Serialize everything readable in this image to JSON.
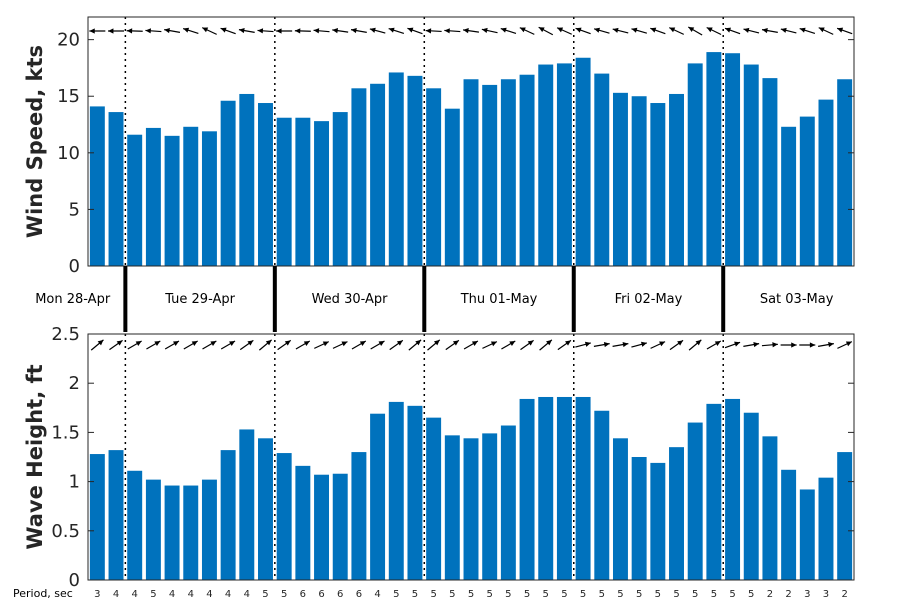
{
  "chart_data": [
    {
      "type": "bar",
      "ylabel": "Wind Speed, kts",
      "ylim": [
        0,
        22
      ],
      "yticks": [
        "0",
        "5",
        "10",
        "15",
        "20"
      ],
      "bar_color": "#0072BD",
      "arrow_style": "pointing toward wind direction (mostly from the east)",
      "values": [
        14.1,
        13.6,
        11.6,
        12.2,
        11.5,
        12.3,
        11.9,
        14.6,
        15.2,
        14.4,
        13.1,
        13.1,
        12.8,
        13.6,
        15.7,
        16.1,
        17.1,
        16.8,
        15.7,
        13.9,
        16.5,
        16.0,
        16.5,
        16.9,
        17.8,
        17.9,
        18.4,
        17.0,
        15.3,
        15.0,
        14.4,
        15.2,
        17.9,
        18.9,
        18.8,
        17.8,
        16.6,
        12.3,
        13.2,
        14.7,
        16.5
      ],
      "arrow_angles_deg": [
        180,
        180,
        182,
        184,
        190,
        198,
        205,
        200,
        190,
        184,
        180,
        182,
        185,
        188,
        190,
        195,
        198,
        200,
        183,
        184,
        188,
        192,
        198,
        205,
        208,
        204,
        200,
        196,
        194,
        196,
        200,
        205,
        210,
        206,
        200,
        194,
        190,
        194,
        198,
        205,
        200
      ]
    },
    {
      "type": "bar",
      "ylabel": "Wave Height, ft",
      "ylim": [
        0,
        2.5
      ],
      "yticks": [
        "0",
        "0.5",
        "1",
        "1.5",
        "2",
        "2.5"
      ],
      "bar_color": "#0072BD",
      "values": [
        1.28,
        1.32,
        1.11,
        1.02,
        0.96,
        0.96,
        1.02,
        1.32,
        1.53,
        1.44,
        1.29,
        1.16,
        1.07,
        1.08,
        1.3,
        1.69,
        1.81,
        1.77,
        1.65,
        1.47,
        1.44,
        1.49,
        1.57,
        1.84,
        1.86,
        1.86,
        1.86,
        1.72,
        1.44,
        1.25,
        1.19,
        1.35,
        1.6,
        1.79,
        1.84,
        1.7,
        1.46,
        1.12,
        0.92,
        1.04,
        1.3
      ],
      "arrow_angles_deg": [
        -40,
        -35,
        -30,
        -30,
        -30,
        -30,
        -30,
        -30,
        -35,
        -40,
        -35,
        -30,
        -25,
        -25,
        -30,
        -30,
        -35,
        -40,
        -40,
        -35,
        -30,
        -25,
        -30,
        -35,
        -40,
        -35,
        -15,
        -10,
        -10,
        -15,
        -25,
        -35,
        -40,
        -30,
        -20,
        -10,
        -5,
        0,
        0,
        -10,
        -25
      ]
    }
  ],
  "days": [
    "Mon 28-Apr",
    "Tue 29-Apr",
    "Wed 30-Apr",
    "Thu 01-May",
    "Fri 02-May",
    "Sat 03-May"
  ],
  "period_label": "Period, sec",
  "periods": [
    "3",
    "4",
    "4",
    "5",
    "4",
    "4",
    "4",
    "4",
    "4",
    "5",
    "5",
    "6",
    "6",
    "6",
    "6",
    "4",
    "5",
    "5",
    "5",
    "5",
    "5",
    "5",
    "5",
    "5",
    "5",
    "5",
    "5",
    "5",
    "5",
    "5",
    "5",
    "5",
    "5",
    "5",
    "5",
    "5",
    "2",
    "2",
    "3",
    "3",
    "2"
  ]
}
